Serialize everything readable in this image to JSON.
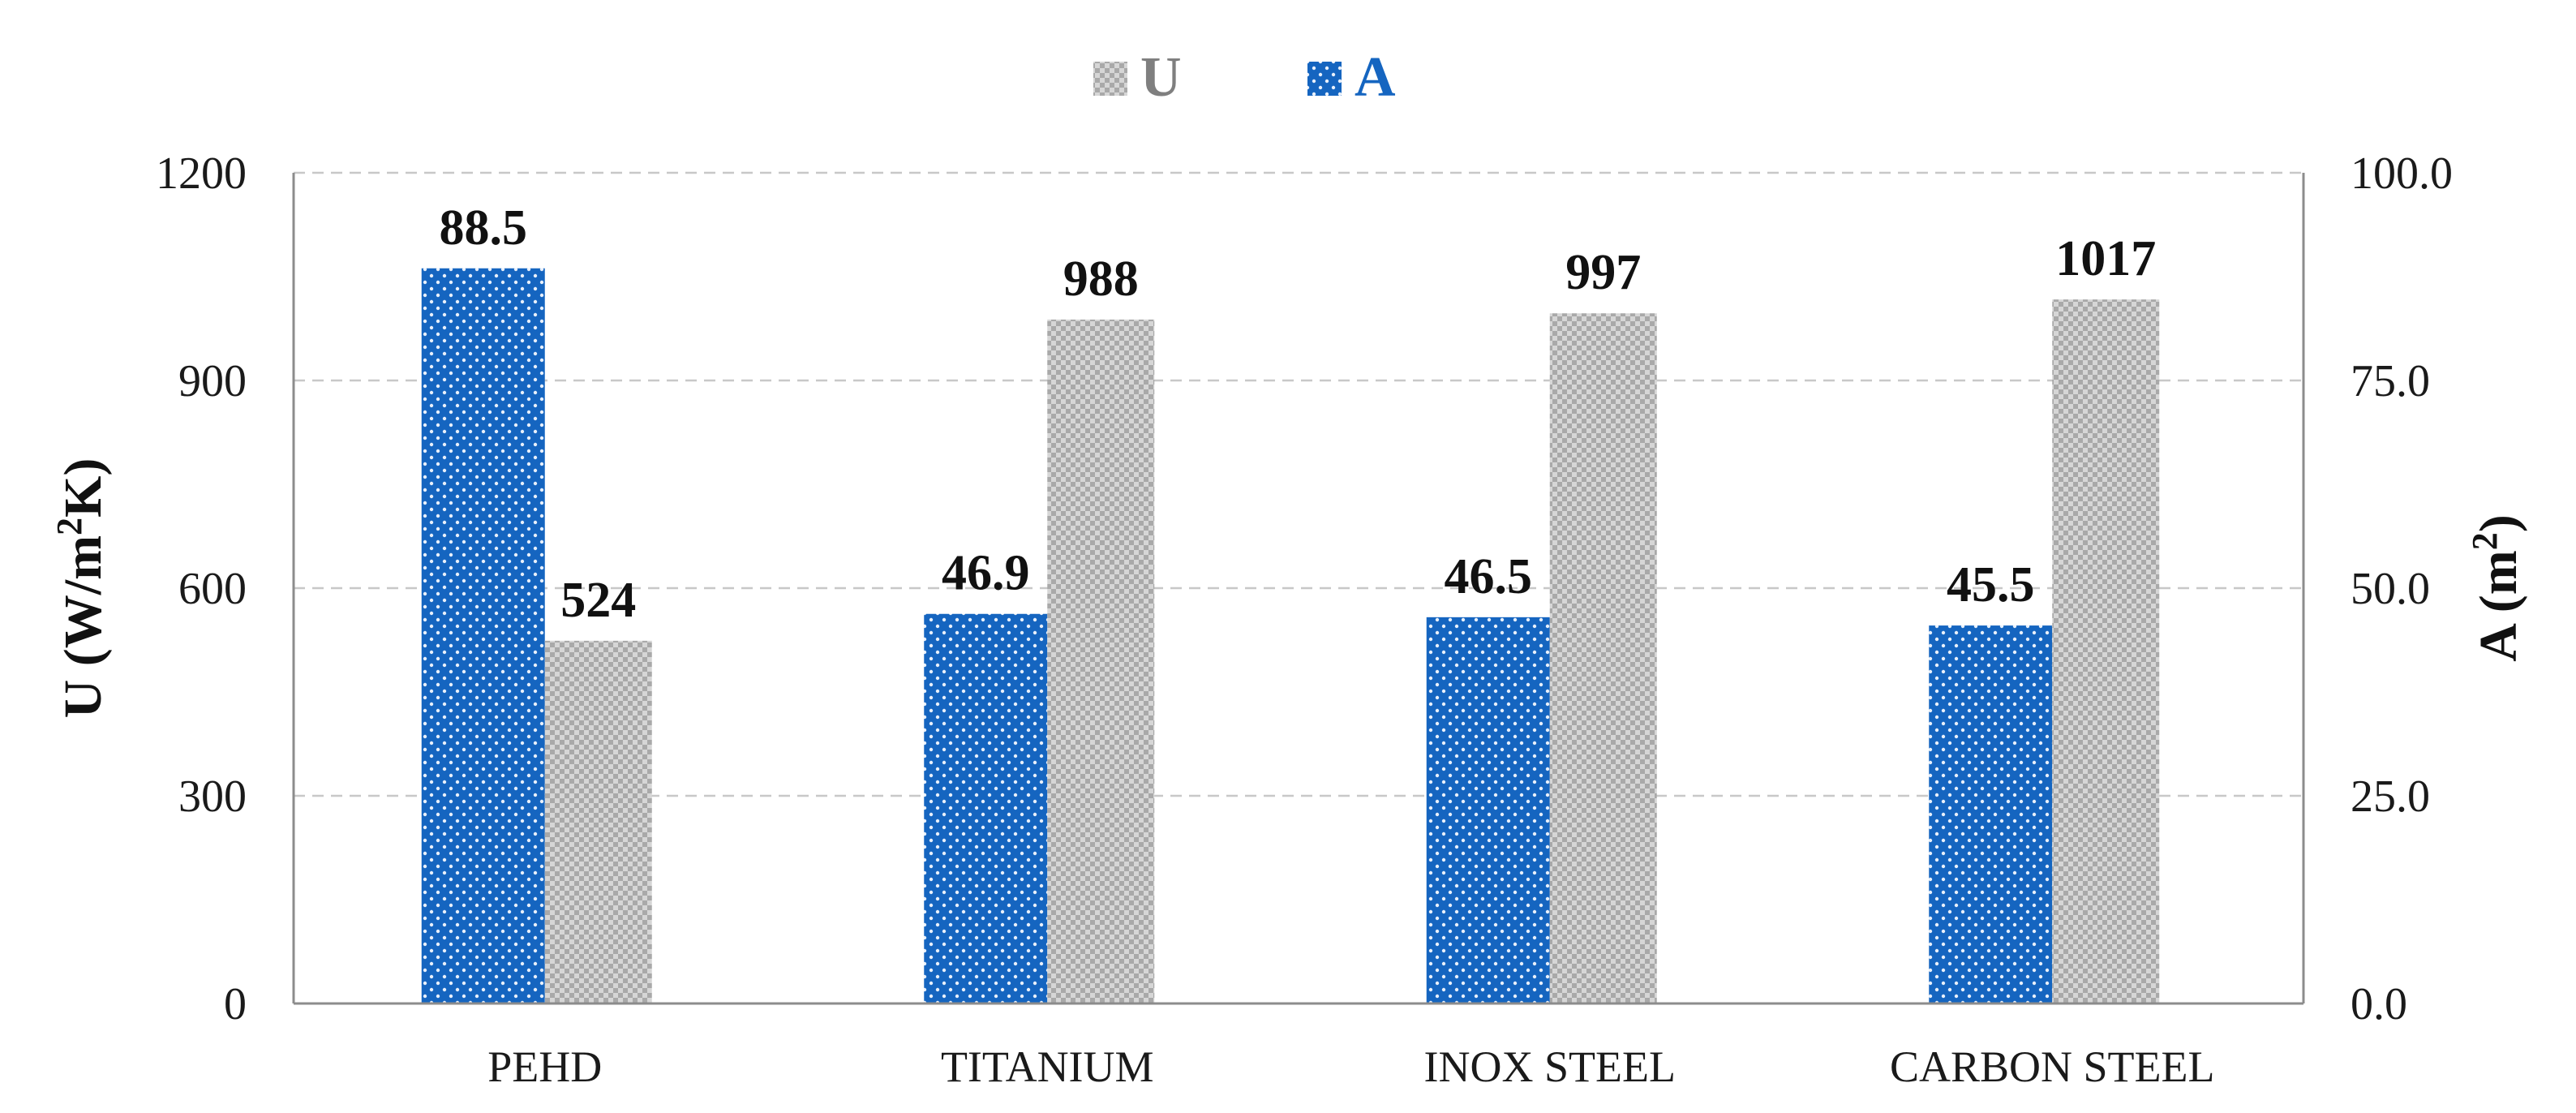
{
  "chart_data": {
    "type": "bar",
    "categories": [
      "PEHD",
      "TITANIUM",
      "INOX STEEL",
      "CARBON STEEL"
    ],
    "series": [
      {
        "name": "A",
        "axis": "right",
        "values": [
          88.5,
          46.9,
          46.5,
          45.5
        ],
        "labels": [
          "88.5",
          "46.9",
          "46.5",
          "45.5"
        ],
        "color": "#1565c0",
        "pattern": "dotted"
      },
      {
        "name": "U",
        "axis": "left",
        "values": [
          524,
          988,
          997,
          1017
        ],
        "labels": [
          "524",
          "988",
          "997",
          "1017"
        ],
        "color": "#b3b3b3",
        "pattern": "checkered"
      }
    ],
    "legend_order": [
      "U",
      "A"
    ],
    "left_axis": {
      "label_main": "U (W/m",
      "label_sup": "2",
      "label_end": "K)",
      "ylim": [
        0,
        1200
      ],
      "ticks": [
        "0",
        "300",
        "600",
        "900",
        "1200"
      ]
    },
    "right_axis": {
      "label_main": "A (m",
      "label_sup": "2",
      "label_end": ")",
      "ylim": [
        0,
        100
      ],
      "ticks": [
        "0.0",
        "25.0",
        "50.0",
        "75.0",
        "100.0"
      ]
    },
    "grid": true,
    "legend_position": "top-center"
  }
}
